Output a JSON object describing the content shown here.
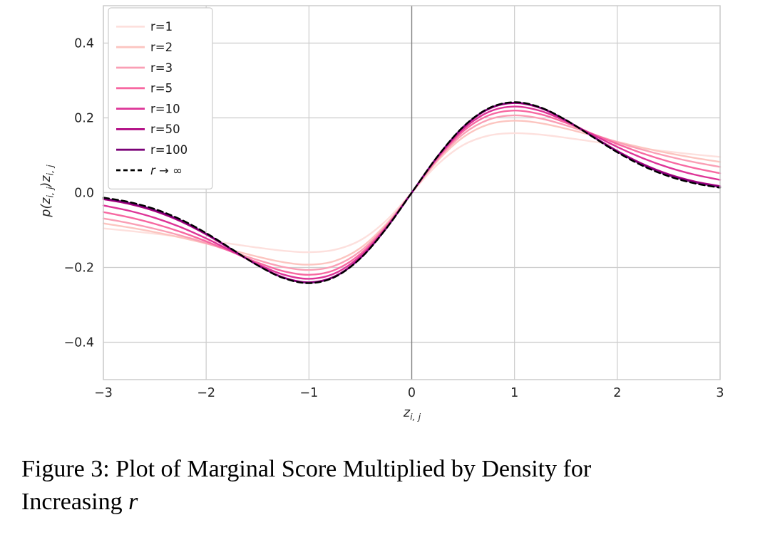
{
  "figure": {
    "caption_line1": "Figure 3: Plot of Marginal Score Multiplied by Density for",
    "caption_line2_prefix": "Increasing ",
    "caption_line2_var": "r"
  },
  "chart_data": {
    "type": "line",
    "title": "",
    "xlabel": {
      "base": "z",
      "sub": "i, j"
    },
    "ylabel": {
      "seg1": "p(z",
      "sub1": "i, j",
      "seg2": ")z",
      "sub2": "i, j"
    },
    "xlim": [
      -3,
      3
    ],
    "ylim": [
      -0.5,
      0.5
    ],
    "grid": true,
    "legend_position": "upper left",
    "zero_vline_color": "#7f7f7f",
    "grid_color": "#cccccc",
    "spine_color": "#c9c9c9",
    "x_ticks": [
      {
        "v": -3,
        "label": "−3"
      },
      {
        "v": -2,
        "label": "−2"
      },
      {
        "v": -1,
        "label": "−1"
      },
      {
        "v": 0,
        "label": "0"
      },
      {
        "v": 1,
        "label": "1"
      },
      {
        "v": 2,
        "label": "2"
      },
      {
        "v": 3,
        "label": "3"
      }
    ],
    "y_ticks": [
      {
        "v": 0.4,
        "label": "0.4"
      },
      {
        "v": 0.2,
        "label": "0.2"
      },
      {
        "v": 0.0,
        "label": "0.0"
      },
      {
        "v": -0.2,
        "label": "−0.2"
      },
      {
        "v": -0.4,
        "label": "−0.4"
      }
    ],
    "x": [
      -3,
      -2.75,
      -2.5,
      -2.25,
      -2,
      -1.75,
      -1.5,
      -1.25,
      -1,
      -0.75,
      -0.5,
      -0.25,
      0,
      0.25,
      0.5,
      0.75,
      1,
      1.25,
      1.5,
      1.75,
      2,
      2.25,
      2.5,
      2.75,
      3
    ],
    "series": [
      {
        "name": "r=1",
        "color": "#fde0dd",
        "dashed": false,
        "italic": false,
        "values": [
          -0.0955,
          -0.1022,
          -0.1098,
          -0.1181,
          -0.1273,
          -0.1371,
          -0.1469,
          -0.1553,
          -0.1592,
          -0.1528,
          -0.1273,
          -0.0749,
          0,
          0.0749,
          0.1273,
          0.1528,
          0.1592,
          0.1553,
          0.1469,
          0.1371,
          0.1273,
          0.1181,
          0.1098,
          0.1022,
          0.0955
        ]
      },
      {
        "name": "r=2",
        "color": "#fcc5c0",
        "dashed": false,
        "italic": false,
        "values": [
          -0.0822,
          -0.093,
          -0.1055,
          -0.1199,
          -0.1361,
          -0.1536,
          -0.1712,
          -0.1859,
          -0.1925,
          -0.1828,
          -0.1481,
          -0.0844,
          0,
          0.0844,
          0.1481,
          0.1828,
          0.1925,
          0.1859,
          0.1712,
          0.1536,
          0.1361,
          0.1199,
          0.1055,
          0.093,
          0.0822
        ]
      },
      {
        "name": "r=3",
        "color": "#fa9fb5",
        "dashed": false,
        "italic": false,
        "values": [
          -0.0689,
          -0.0815,
          -0.0967,
          -0.1145,
          -0.135,
          -0.1575,
          -0.18,
          -0.1986,
          -0.2067,
          -0.1955,
          -0.1566,
          -0.0882,
          0,
          0.0882,
          0.1566,
          0.1955,
          0.2067,
          0.1986,
          0.18,
          0.1575,
          0.135,
          0.1145,
          0.0967,
          0.0815,
          0.0689
        ]
      },
      {
        "name": "r=5",
        "color": "#f768a1",
        "dashed": false,
        "italic": false,
        "values": [
          -0.0519,
          -0.0658,
          -0.0833,
          -0.1048,
          -0.1302,
          -0.1584,
          -0.1868,
          -0.2099,
          -0.2197,
          -0.2068,
          -0.164,
          -0.0914,
          0,
          0.0914,
          0.164,
          0.2068,
          0.2197,
          0.2099,
          0.1868,
          0.1584,
          0.1302,
          0.1048,
          0.0833,
          0.0658,
          0.0519
        ]
      },
      {
        "name": "r=10",
        "color": "#dd3497",
        "dashed": false,
        "italic": false,
        "values": [
          -0.0342,
          -0.0483,
          -0.0673,
          -0.092,
          -0.1223,
          -0.1567,
          -0.1912,
          -0.2189,
          -0.2304,
          -0.216,
          -0.1698,
          -0.094,
          0,
          0.094,
          0.1698,
          0.216,
          0.2304,
          0.2189,
          0.1912,
          0.1567,
          0.1223,
          0.092,
          0.0673,
          0.0483,
          0.0342
        ]
      },
      {
        "name": "r=50",
        "color": "#ae017e",
        "dashed": false,
        "italic": false,
        "values": [
          -0.0175,
          -0.0301,
          -0.0492,
          -0.0764,
          -0.1116,
          -0.1526,
          -0.1938,
          -0.2264,
          -0.2396,
          -0.2238,
          -0.1748,
          -0.0961,
          0,
          0.0961,
          0.1748,
          0.2238,
          0.2396,
          0.2264,
          0.1938,
          0.1526,
          0.1116,
          0.0764,
          0.0492,
          0.0301,
          0.0175
        ]
      },
      {
        "name": "r=100",
        "color": "#7a0177",
        "dashed": false,
        "italic": false,
        "values": [
          -0.0154,
          -0.0276,
          -0.0466,
          -0.0739,
          -0.1098,
          -0.1518,
          -0.194,
          -0.2274,
          -0.2408,
          -0.2248,
          -0.1754,
          -0.0964,
          0,
          0.0964,
          0.1754,
          0.2248,
          0.2408,
          0.2274,
          0.194,
          0.1518,
          0.1098,
          0.0739,
          0.0466,
          0.0276,
          0.0154
        ]
      },
      {
        "name": "r → ∞",
        "color": "#000000",
        "dashed": true,
        "italic": true,
        "values": [
          -0.0133,
          -0.025,
          -0.0438,
          -0.0714,
          -0.108,
          -0.151,
          -0.1943,
          -0.2283,
          -0.242,
          -0.2259,
          -0.176,
          -0.0967,
          0,
          0.0967,
          0.176,
          0.2259,
          0.242,
          0.2283,
          0.1943,
          0.151,
          0.108,
          0.0714,
          0.0438,
          0.025,
          0.0133
        ]
      }
    ]
  }
}
